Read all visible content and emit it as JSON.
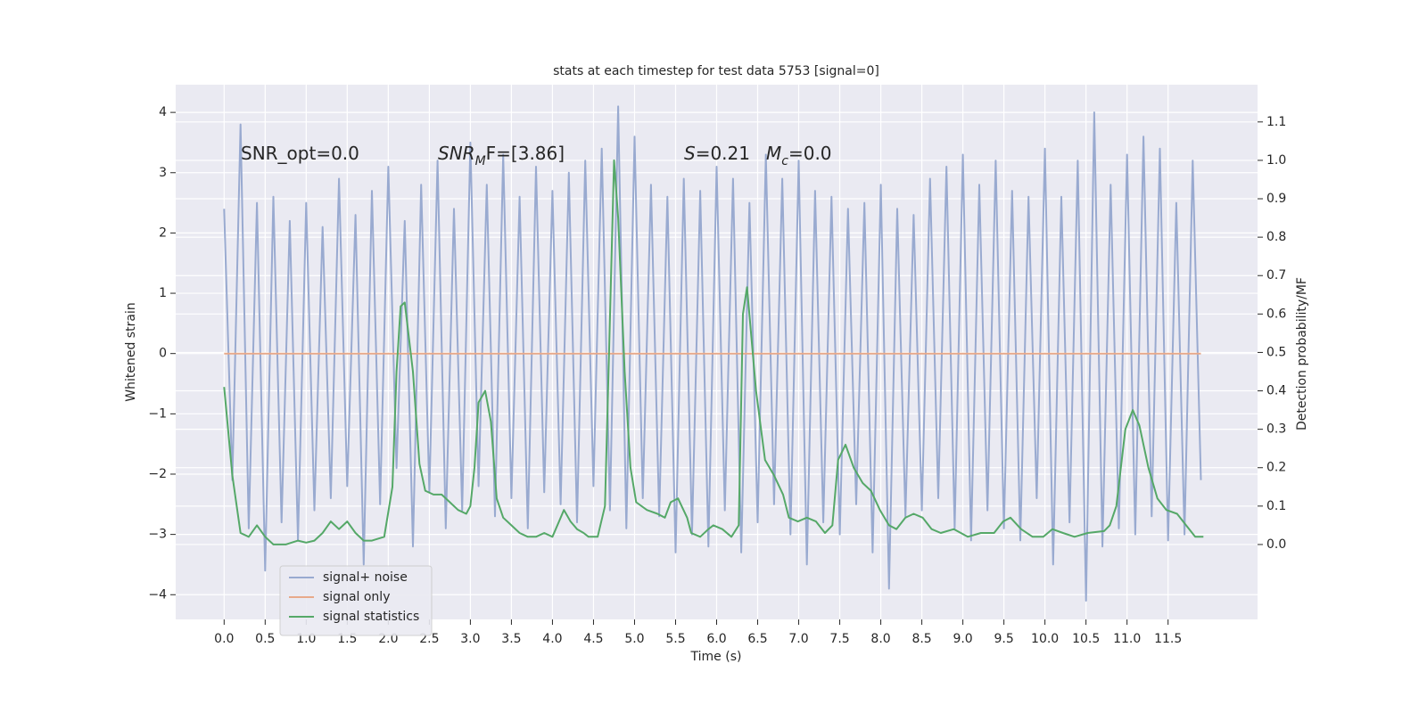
{
  "chart_data": {
    "type": "line",
    "title": "stats at each timestep for test data 5753 [signal=0]",
    "xlabel": "Time (s)",
    "ylabel": "Whitened strain",
    "y2label": "Detection probability/MF",
    "xlim": [
      -0.59,
      12.59
    ],
    "ylim": [
      -4.41,
      4.46
    ],
    "y2lim": [
      -0.195,
      1.197
    ],
    "xticks": [
      {
        "value": 0,
        "label": "0.0"
      },
      0.5,
      {
        "value": 1,
        "label": "1.0"
      },
      1.5,
      {
        "value": 2,
        "label": "2.0"
      },
      2.5,
      {
        "value": 3,
        "label": "3.0"
      },
      3.5,
      {
        "value": 4,
        "label": "4.0"
      },
      4.5,
      {
        "value": 5,
        "label": "5.0"
      },
      5.5,
      {
        "value": 6,
        "label": "6.0"
      },
      6.5,
      {
        "value": 7,
        "label": "7.0"
      },
      7.5,
      {
        "value": 8,
        "label": "8.0"
      },
      8.5,
      {
        "value": 9,
        "label": "9.0"
      },
      9.5,
      {
        "value": 10,
        "label": "10.0"
      },
      10.5,
      {
        "value": 11,
        "label": "11.0"
      },
      11.5
    ],
    "yticks": [
      {
        "value": -4,
        "label": "−4"
      },
      {
        "value": -3,
        "label": "−3"
      },
      {
        "value": -2,
        "label": "−2"
      },
      {
        "value": -1,
        "label": "−1"
      },
      0,
      1,
      2,
      3,
      4
    ],
    "y2ticks": [
      {
        "value": 0,
        "label": "0.0"
      },
      0.1,
      0.2,
      0.3,
      0.4,
      0.5,
      0.6,
      0.7,
      0.8,
      0.9,
      {
        "value": 1,
        "label": "1.0"
      },
      1.1
    ],
    "grid": true,
    "legend": "lower left",
    "annotations": [
      [
        {
          "text": "SNR_opt=0.0"
        }
      ],
      [
        {
          "text": "SNR",
          "style": "italic"
        },
        {
          "text": "M",
          "style": "sub"
        },
        {
          "text": "F=[3.86]"
        }
      ],
      [
        {
          "text": "S",
          "style": "italic"
        },
        {
          "text": "=0.21"
        },
        {
          "text": "M",
          "style": "italic"
        },
        {
          "text": "c",
          "style": "sub"
        },
        {
          "text": "=0.0"
        }
      ]
    ],
    "series": [
      {
        "name": "signal+ noise",
        "color": "#99aad0",
        "x": [
          0.0,
          0.1,
          0.2,
          0.3,
          0.4,
          0.5,
          0.6,
          0.7,
          0.8,
          0.9,
          1.0,
          1.1,
          1.2,
          1.3,
          1.4,
          1.5,
          1.6,
          1.7,
          1.8,
          1.9,
          2.0,
          2.1,
          2.2,
          2.3,
          2.4,
          2.5,
          2.6,
          2.7,
          2.8,
          2.9,
          3.0,
          3.1,
          3.2,
          3.3,
          3.4,
          3.5,
          3.6,
          3.7,
          3.8,
          3.9,
          4.0,
          4.1,
          4.2,
          4.3,
          4.4,
          4.5,
          4.6,
          4.7,
          4.8,
          4.9,
          5.0,
          5.1,
          5.2,
          5.3,
          5.4,
          5.5,
          5.6,
          5.7,
          5.8,
          5.9,
          6.0,
          6.1,
          6.2,
          6.3,
          6.4,
          6.5,
          6.6,
          6.7,
          6.8,
          6.9,
          7.0,
          7.1,
          7.2,
          7.3,
          7.4,
          7.5,
          7.6,
          7.7,
          7.8,
          7.9,
          8.0,
          8.1,
          8.2,
          8.3,
          8.4,
          8.5,
          8.6,
          8.7,
          8.8,
          8.9,
          9.0,
          9.1,
          9.2,
          9.3,
          9.4,
          9.5,
          9.6,
          9.7,
          9.8,
          9.9,
          10.0,
          10.1,
          10.2,
          10.3,
          10.4,
          10.5,
          10.6,
          10.7,
          10.8,
          10.9,
          11.0,
          11.1,
          11.2,
          11.3,
          11.4,
          11.5,
          11.6,
          11.7,
          11.8,
          11.9
        ],
        "values": [
          2.4,
          -2.1,
          3.8,
          -2.9,
          2.5,
          -3.6,
          2.6,
          -2.8,
          2.2,
          -3.1,
          2.5,
          -2.6,
          2.1,
          -2.4,
          2.9,
          -2.2,
          2.3,
          -3.5,
          2.7,
          -2.5,
          3.1,
          -1.9,
          2.2,
          -3.2,
          2.8,
          -2.3,
          3.2,
          -2.9,
          2.4,
          -2.6,
          3.5,
          -2.2,
          2.8,
          -2.7,
          3.3,
          -2.4,
          2.6,
          -2.9,
          3.1,
          -2.3,
          2.7,
          -2.5,
          3.0,
          -2.8,
          3.2,
          -2.2,
          3.4,
          -2.6,
          4.1,
          -2.9,
          3.6,
          -2.4,
          2.8,
          -2.7,
          2.6,
          -3.3,
          2.9,
          -3.0,
          2.7,
          -3.2,
          3.1,
          -2.6,
          2.9,
          -3.3,
          2.5,
          -2.8,
          3.3,
          -2.5,
          2.9,
          -3.0,
          3.2,
          -3.5,
          2.7,
          -2.8,
          2.6,
          -3.0,
          2.4,
          -2.5,
          2.5,
          -3.3,
          2.8,
          -3.9,
          2.4,
          -2.7,
          2.3,
          -2.6,
          2.9,
          -2.4,
          3.1,
          -2.9,
          3.3,
          -3.1,
          2.8,
          -2.6,
          3.2,
          -2.9,
          2.7,
          -3.1,
          2.6,
          -2.4,
          3.4,
          -3.5,
          2.6,
          -2.8,
          3.2,
          -4.1,
          4.0,
          -3.2,
          2.8,
          -2.9,
          3.3,
          -3.0,
          3.6,
          -2.7,
          3.4,
          -3.1,
          2.5,
          -3.0,
          3.2,
          -2.1
        ]
      },
      {
        "name": "signal only",
        "color": "#e8a98a",
        "x": [
          0.0,
          11.9
        ],
        "values": [
          0,
          0
        ]
      },
      {
        "name": "signal statistics",
        "color": "#55a868",
        "axis": "y2",
        "x": [
          0,
          0.1,
          0.2,
          0.3,
          0.4,
          0.5,
          0.6,
          0.75,
          0.9,
          1.0,
          1.1,
          1.2,
          1.3,
          1.4,
          1.5,
          1.6,
          1.7,
          1.8,
          1.95,
          2.05,
          2.1,
          2.15,
          2.2,
          2.3,
          2.38,
          2.45,
          2.55,
          2.65,
          2.75,
          2.85,
          2.95,
          3.0,
          3.05,
          3.1,
          3.18,
          3.25,
          3.32,
          3.4,
          3.5,
          3.6,
          3.7,
          3.8,
          3.9,
          4.0,
          4.08,
          4.14,
          4.22,
          4.3,
          4.38,
          4.44,
          4.55,
          4.64,
          4.69,
          4.75,
          4.8,
          4.88,
          4.95,
          5.02,
          5.15,
          5.28,
          5.37,
          5.44,
          5.53,
          5.64,
          5.69,
          5.8,
          5.9,
          5.96,
          6.07,
          6.18,
          6.27,
          6.32,
          6.37,
          6.48,
          6.59,
          6.7,
          6.81,
          6.88,
          6.99,
          7.1,
          7.21,
          7.32,
          7.41,
          7.48,
          7.57,
          7.67,
          7.78,
          7.88,
          7.99,
          8.1,
          8.19,
          8.3,
          8.4,
          8.51,
          8.62,
          8.73,
          8.89,
          9.06,
          9.22,
          9.38,
          9.49,
          9.58,
          9.71,
          9.85,
          9.98,
          10.09,
          10.22,
          10.36,
          10.52,
          10.72,
          10.79,
          10.87,
          10.98,
          11.07,
          11.15,
          11.26,
          11.37,
          11.48,
          11.61,
          11.72,
          11.83,
          11.93
        ],
        "values": [
          0.41,
          0.18,
          0.03,
          0.02,
          0.05,
          0.02,
          0.0,
          0.0,
          0.01,
          0.005,
          0.01,
          0.03,
          0.06,
          0.04,
          0.06,
          0.03,
          0.01,
          0.01,
          0.02,
          0.15,
          0.45,
          0.62,
          0.63,
          0.45,
          0.21,
          0.14,
          0.13,
          0.13,
          0.11,
          0.09,
          0.08,
          0.1,
          0.2,
          0.37,
          0.4,
          0.32,
          0.12,
          0.07,
          0.05,
          0.03,
          0.02,
          0.02,
          0.03,
          0.02,
          0.06,
          0.09,
          0.06,
          0.04,
          0.03,
          0.02,
          0.02,
          0.1,
          0.5,
          1.0,
          0.85,
          0.45,
          0.2,
          0.11,
          0.09,
          0.08,
          0.07,
          0.11,
          0.12,
          0.07,
          0.03,
          0.02,
          0.04,
          0.05,
          0.04,
          0.02,
          0.05,
          0.6,
          0.67,
          0.4,
          0.22,
          0.18,
          0.13,
          0.07,
          0.06,
          0.07,
          0.06,
          0.03,
          0.05,
          0.22,
          0.26,
          0.2,
          0.16,
          0.14,
          0.09,
          0.05,
          0.04,
          0.07,
          0.08,
          0.07,
          0.04,
          0.03,
          0.04,
          0.02,
          0.03,
          0.03,
          0.06,
          0.07,
          0.04,
          0.02,
          0.02,
          0.04,
          0.03,
          0.02,
          0.03,
          0.035,
          0.05,
          0.1,
          0.3,
          0.35,
          0.31,
          0.2,
          0.12,
          0.09,
          0.08,
          0.05,
          0.02,
          0.02
        ]
      }
    ]
  }
}
